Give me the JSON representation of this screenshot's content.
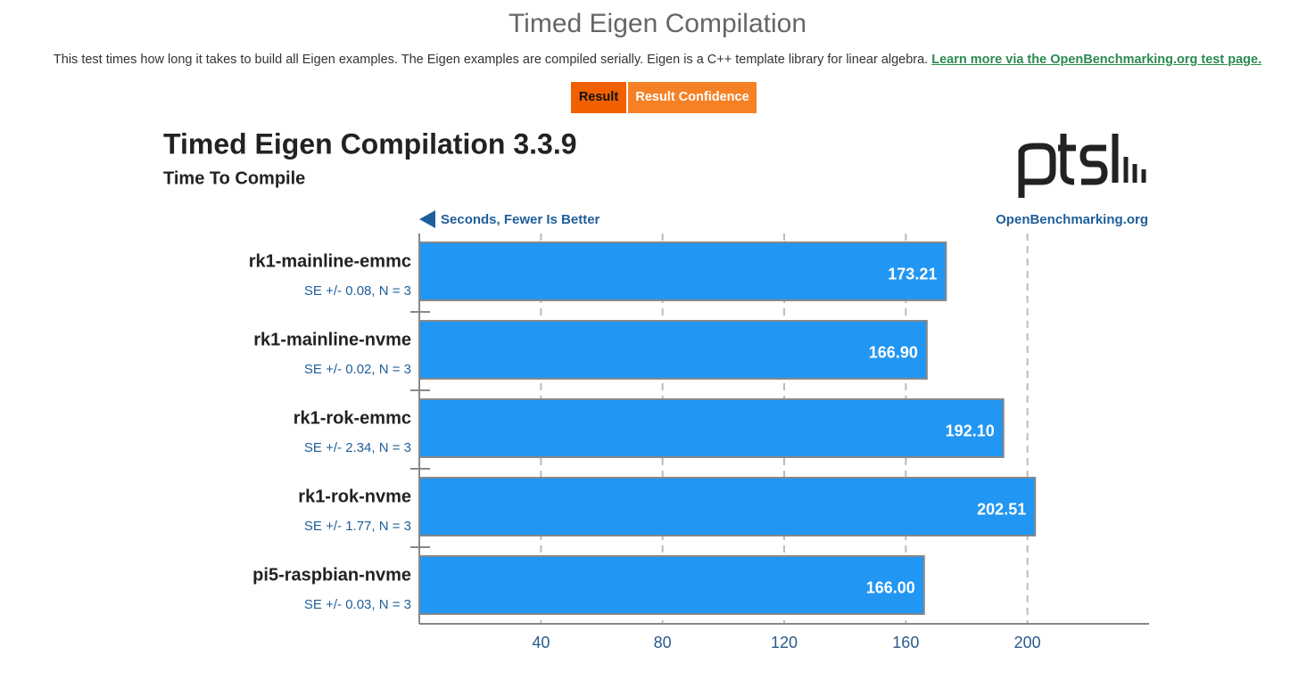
{
  "header": {
    "title": "Timed Eigen Compilation",
    "description": "This test times how long it takes to build all Eigen examples. The Eigen examples are compiled serially. Eigen is a C++ template library for linear algebra.",
    "link": "Learn more via the OpenBenchmarking.org test page."
  },
  "tabs": [
    "Result",
    "Result Confidence"
  ],
  "chart_data": {
    "type": "bar",
    "orientation": "horizontal",
    "title": "Timed Eigen Compilation 3.3.9",
    "subtitle": "Time To Compile",
    "x_label": "Seconds, Fewer Is Better",
    "source": "OpenBenchmarking.org",
    "categories": [
      "rk1-mainline-emmc",
      "rk1-mainline-nvme",
      "rk1-rok-emmc",
      "rk1-rok-nvme",
      "pi5-raspbian-nvme"
    ],
    "values": [
      173.21,
      166.9,
      192.1,
      202.51,
      166.0
    ],
    "value_labels": [
      "173.21",
      "166.90",
      "192.10",
      "202.51",
      "166.00"
    ],
    "se_labels": [
      "SE +/- 0.08, N = 3",
      "SE +/- 0.02, N = 3",
      "SE +/- 2.34, N = 3",
      "SE +/- 1.77, N = 3",
      "SE +/- 0.03, N = 3"
    ],
    "color": "#2196f3",
    "xlim": [
      0,
      240
    ],
    "xticks": [
      40,
      80,
      120,
      160,
      200
    ],
    "grid": true
  }
}
